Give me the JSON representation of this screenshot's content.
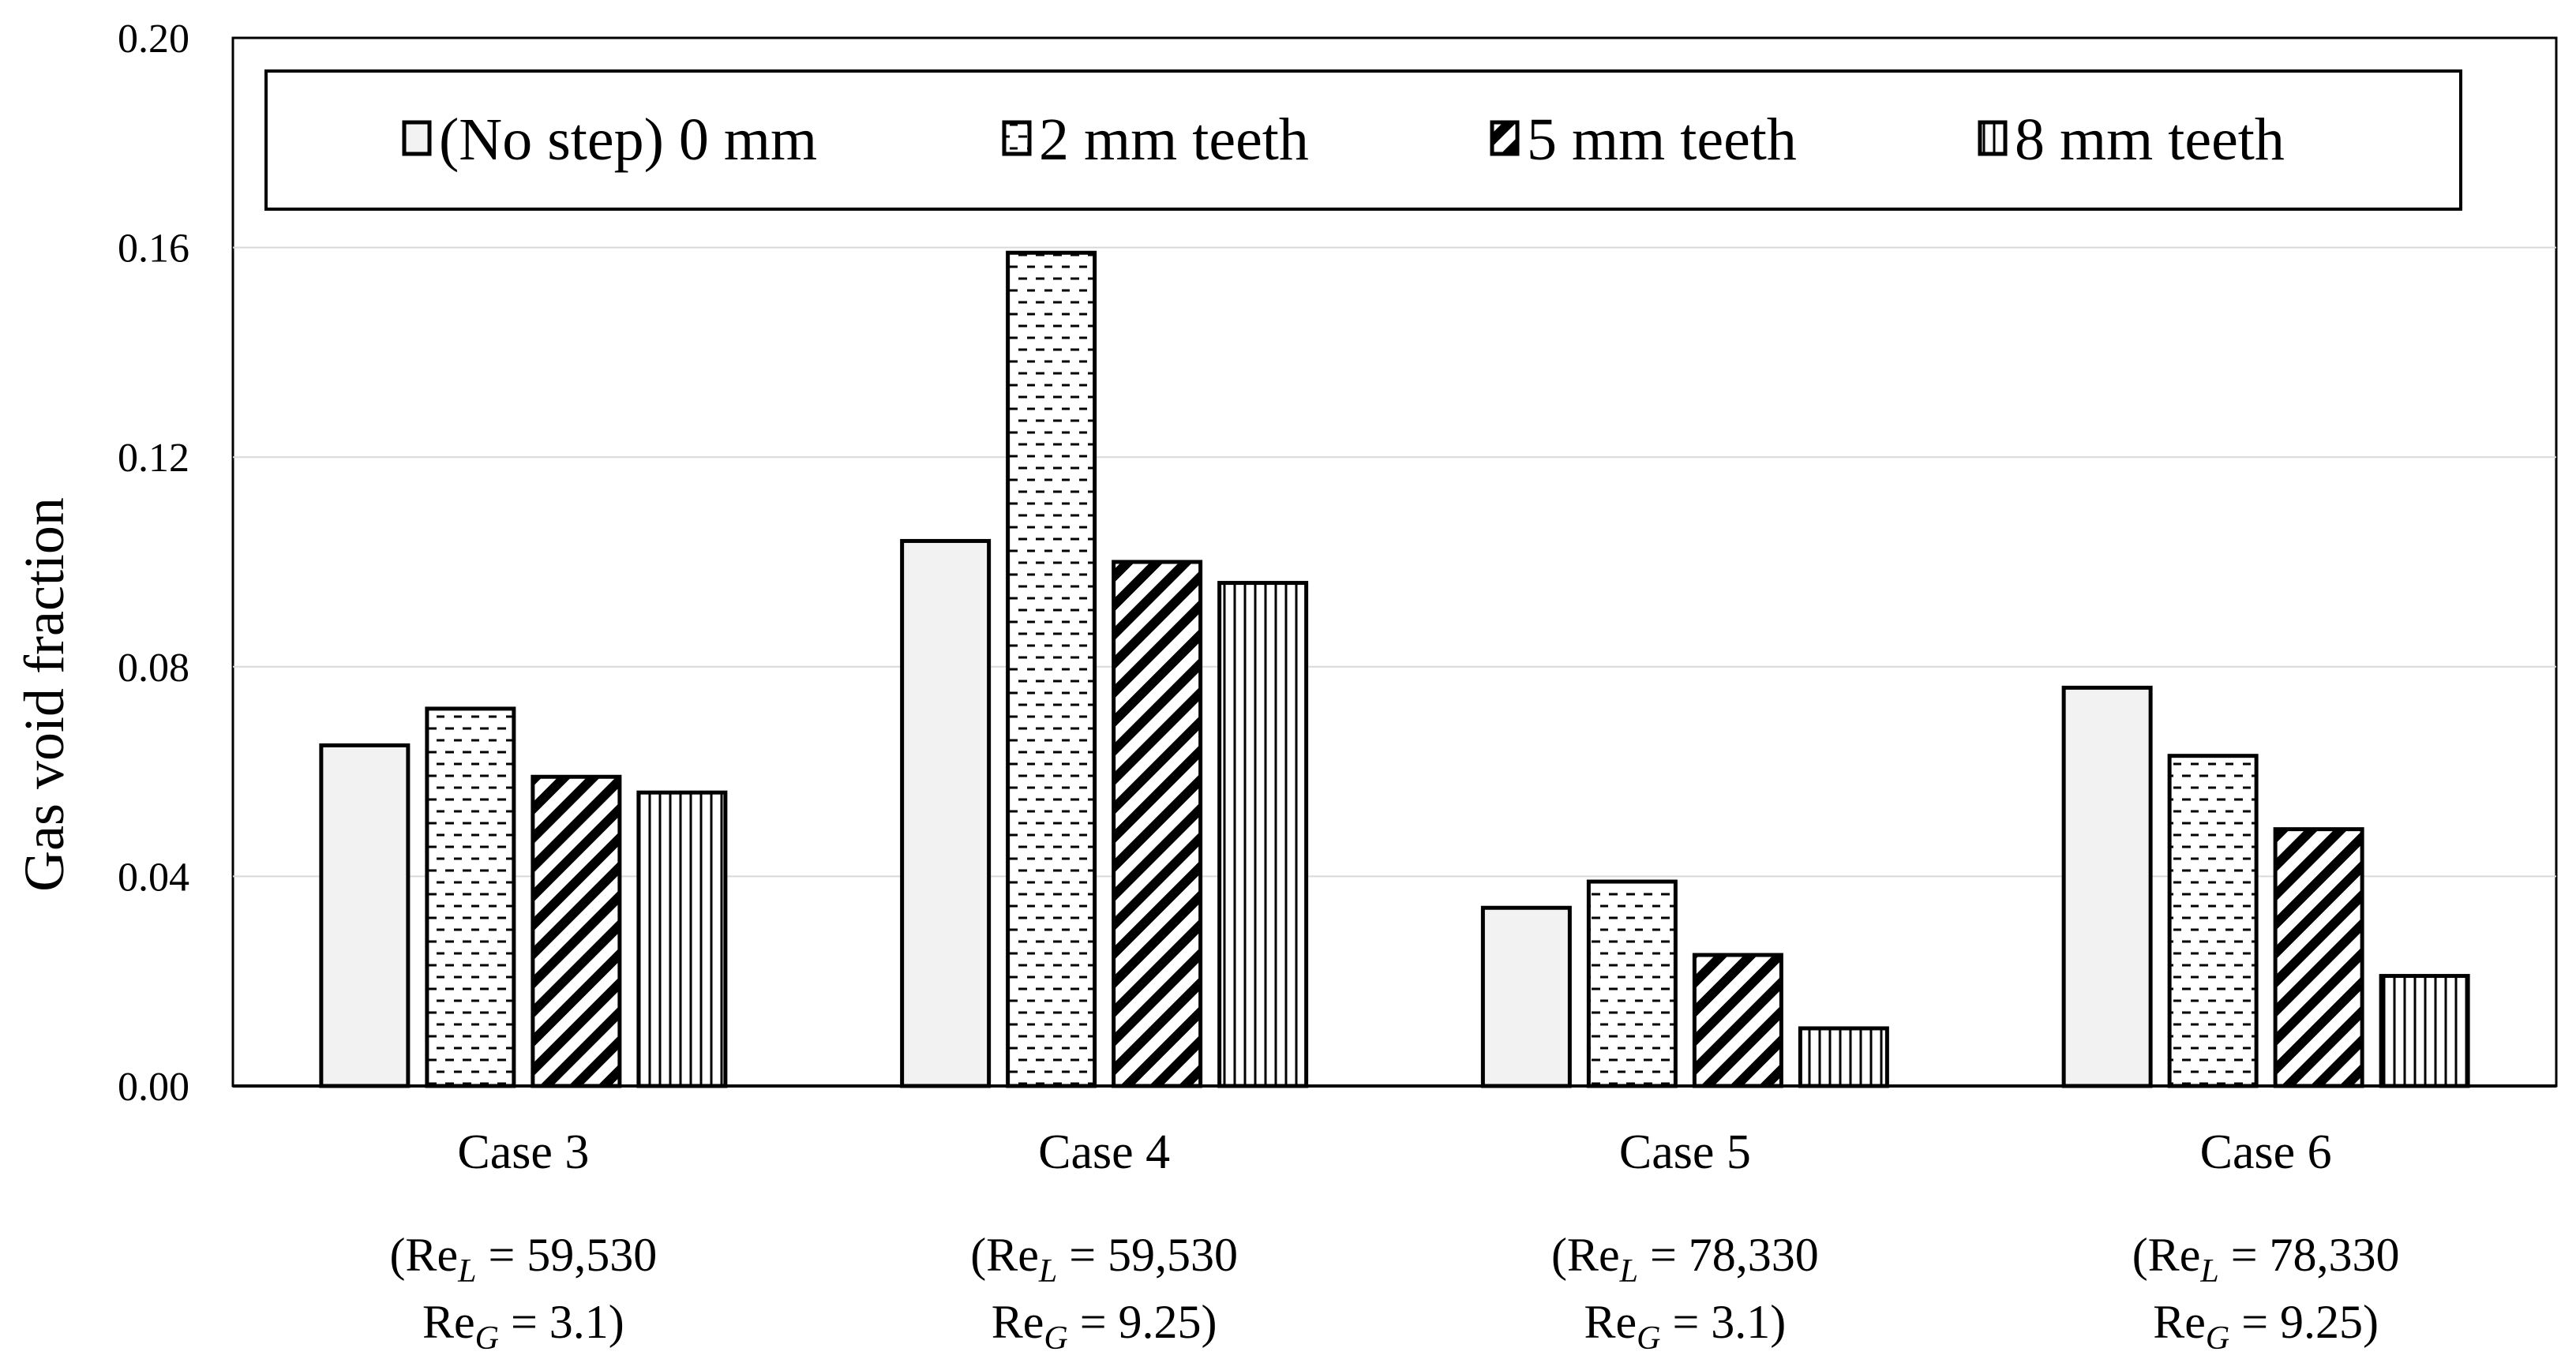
{
  "chart_data": {
    "type": "bar",
    "title": "",
    "xlabel": "",
    "ylabel": "Gas void fraction",
    "ylim": [
      0,
      0.2
    ],
    "yticks": [
      "0.00",
      "0.04",
      "0.08",
      "0.12",
      "0.16",
      "0.20"
    ],
    "grid": true,
    "legend_position": "top",
    "categories": [
      {
        "name": "Case 3",
        "re_l_prefix": "(Re",
        "re_l_sub": "L",
        "re_l_value": " = 59,530",
        "re_g_prefix": "Re",
        "re_g_sub": "G",
        "re_g_value": " = 3.1)"
      },
      {
        "name": "Case 4",
        "re_l_prefix": "(Re",
        "re_l_sub": "L",
        "re_l_value": " = 59,530",
        "re_g_prefix": "Re",
        "re_g_sub": "G",
        "re_g_value": " = 9.25)"
      },
      {
        "name": "Case 5",
        "re_l_prefix": "(Re",
        "re_l_sub": "L",
        "re_l_value": " = 78,330",
        "re_g_prefix": "Re",
        "re_g_sub": "G",
        "re_g_value": " = 3.1)"
      },
      {
        "name": "Case 6",
        "re_l_prefix": "(Re",
        "re_l_sub": "L",
        "re_l_value": " = 78,330",
        "re_g_prefix": "Re",
        "re_g_sub": "G",
        "re_g_value": " = 9.25)"
      }
    ],
    "series": [
      {
        "name": "(No step) 0 mm",
        "pattern": "solid",
        "values": [
          0.065,
          0.104,
          0.034,
          0.076
        ]
      },
      {
        "name": "2 mm teeth",
        "pattern": "dashes",
        "values": [
          0.072,
          0.159,
          0.039,
          0.063
        ]
      },
      {
        "name": "5 mm teeth",
        "pattern": "diagonal",
        "values": [
          0.059,
          0.1,
          0.025,
          0.049
        ]
      },
      {
        "name": "8 mm teeth",
        "pattern": "vertical",
        "values": [
          0.056,
          0.096,
          0.011,
          0.021
        ]
      }
    ]
  },
  "colors": {
    "axis": "#000000",
    "grid": "#d9d9d9",
    "bar_fill_solid": "#f2f2f2",
    "pattern_ink": "#000000"
  }
}
